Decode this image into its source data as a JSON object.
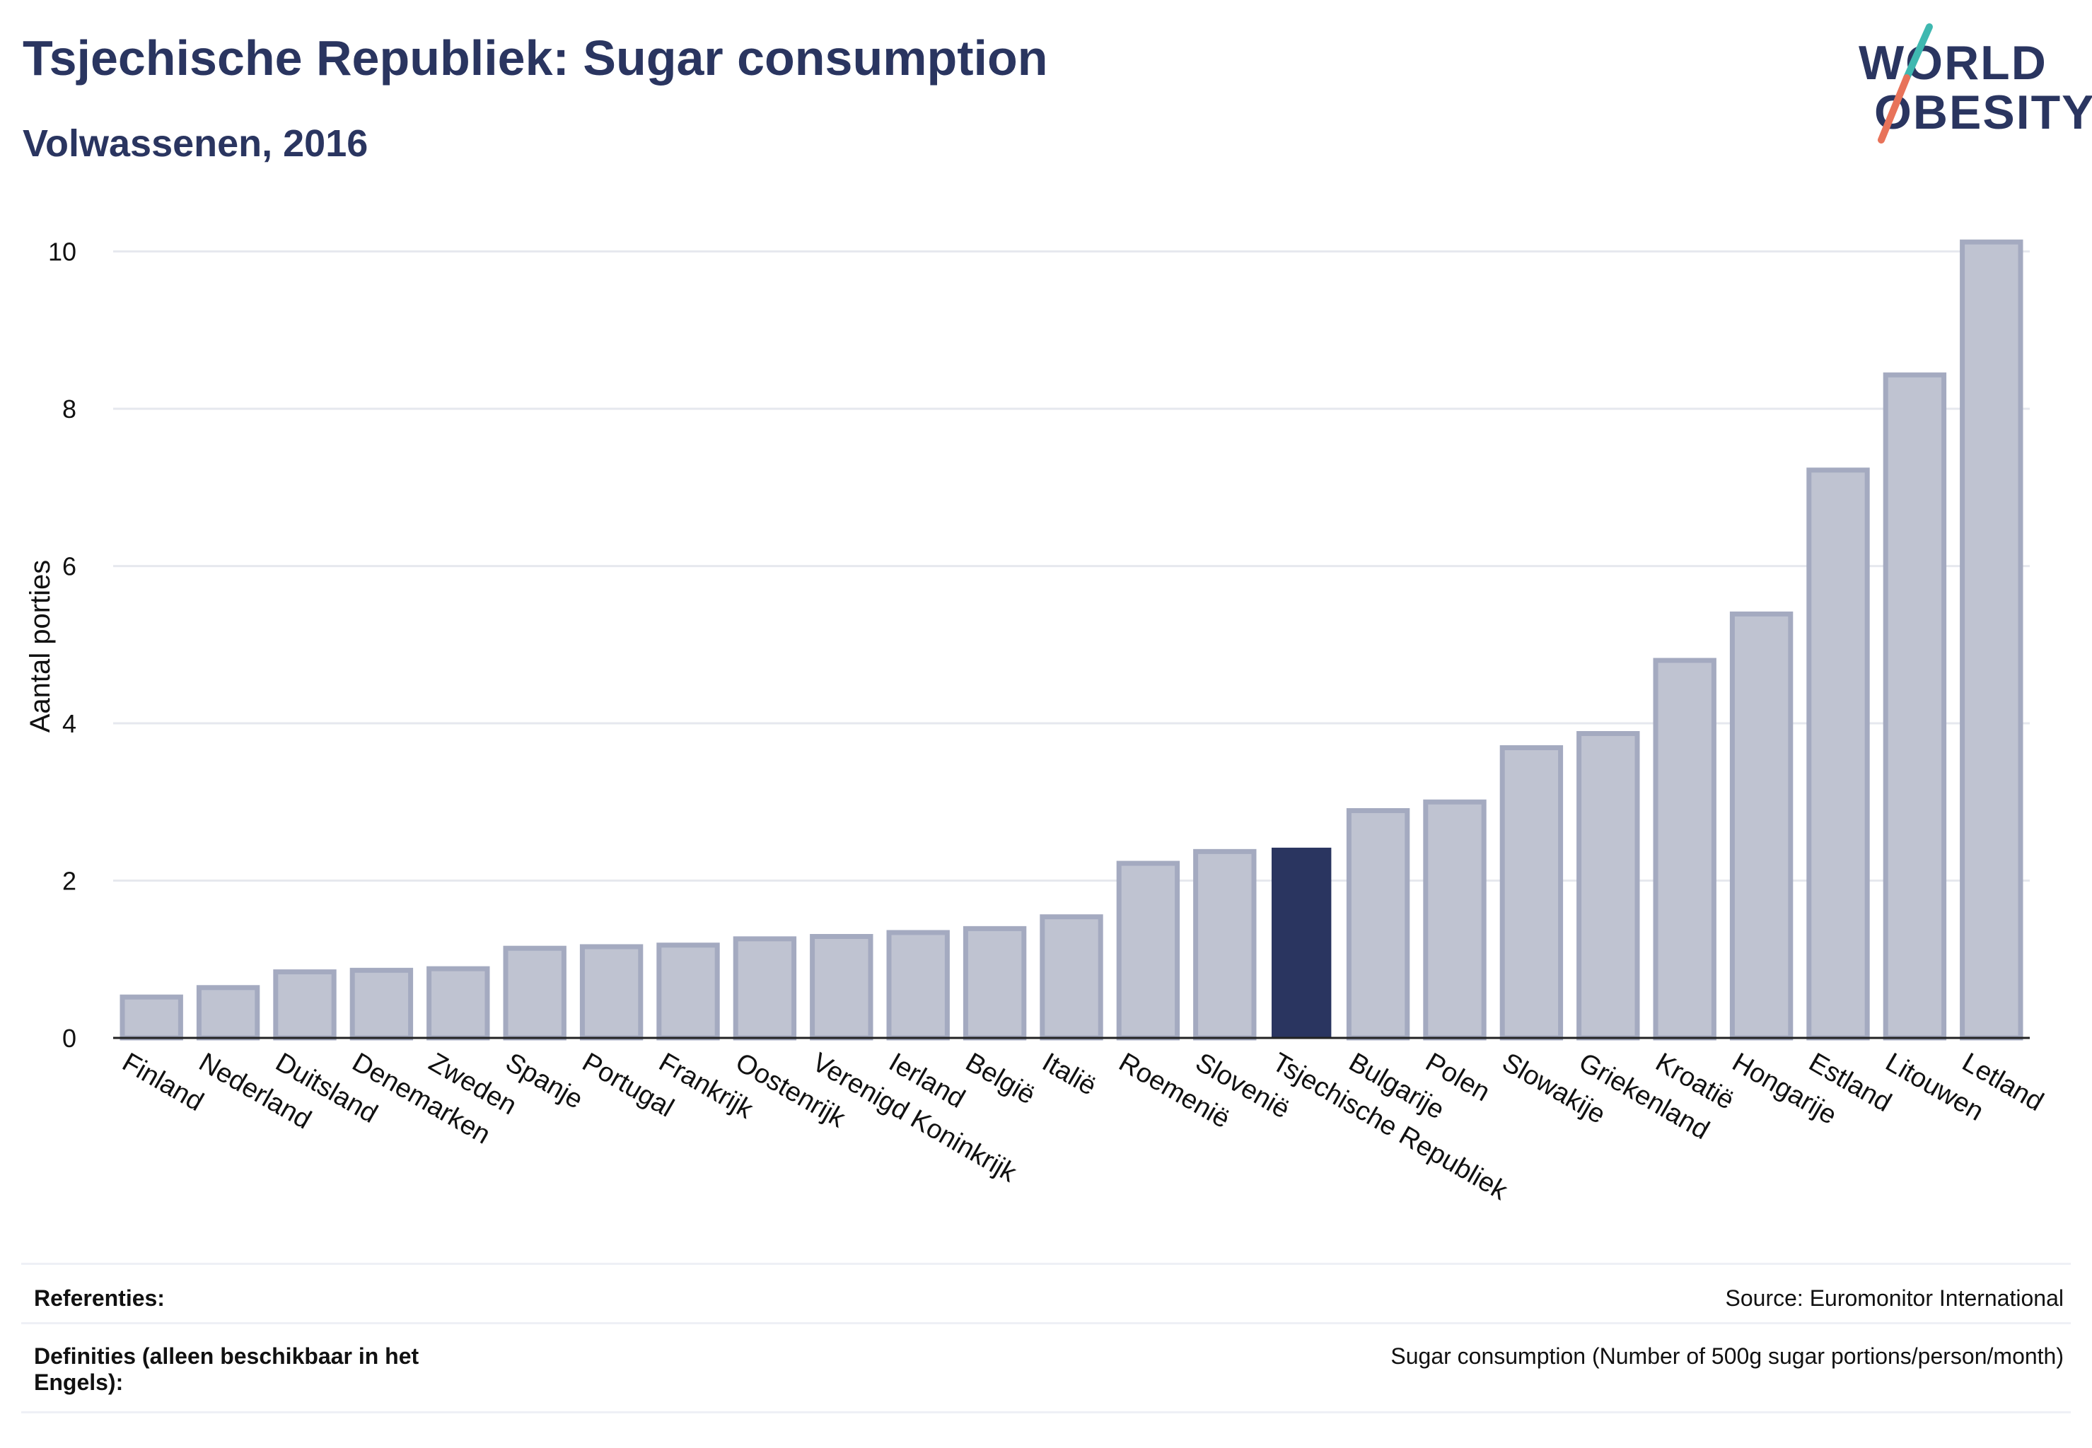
{
  "title": "Tsjechische Republiek: Sugar consumption",
  "subtitle": "Volwassenen, 2016",
  "logo": {
    "line1": "WORLD",
    "line2": "OBESITY"
  },
  "colors": {
    "highlight": "#2a3560",
    "bar_fill": "#bfc3d1",
    "bar_stroke": "#a4aac0",
    "grid": "#e6e8ee",
    "logo_teal": "#3fb8b0",
    "logo_coral": "#e8735a"
  },
  "chart_data": {
    "type": "bar",
    "ylabel": "Aantal porties",
    "xlabel": "",
    "ylim": [
      0,
      10.5
    ],
    "yticks": [
      0,
      2,
      4,
      6,
      8,
      10
    ],
    "grid": true,
    "highlight_category": "Tsjechische Republiek",
    "categories": [
      "Finland",
      "Nederland",
      "Duitsland",
      "Denemarken",
      "Zweden",
      "Spanje",
      "Portugal",
      "Frankrijk",
      "Oostenrijk",
      "Verenigd Koninkrijk",
      "Ierland",
      "België",
      "Italië",
      "Roemenië",
      "Slovenië",
      "Tsjechische Republiek",
      "Bulgarije",
      "Polen",
      "Slowakije",
      "Griekenland",
      "Kroatië",
      "Hongarije",
      "Estland",
      "Litouwen",
      "Letland"
    ],
    "values": [
      0.52,
      0.64,
      0.84,
      0.86,
      0.88,
      1.14,
      1.16,
      1.18,
      1.26,
      1.29,
      1.34,
      1.39,
      1.54,
      2.22,
      2.37,
      2.41,
      2.89,
      3.0,
      3.69,
      3.87,
      4.8,
      5.39,
      7.22,
      8.43,
      10.12
    ]
  },
  "footer": {
    "references_label": "Referenties:",
    "references_value": "Source: Euromonitor International",
    "definitions_label": "Definities (alleen beschikbaar in het Engels):",
    "definitions_value": "Sugar consumption (Number of 500g sugar portions/person/month)"
  }
}
